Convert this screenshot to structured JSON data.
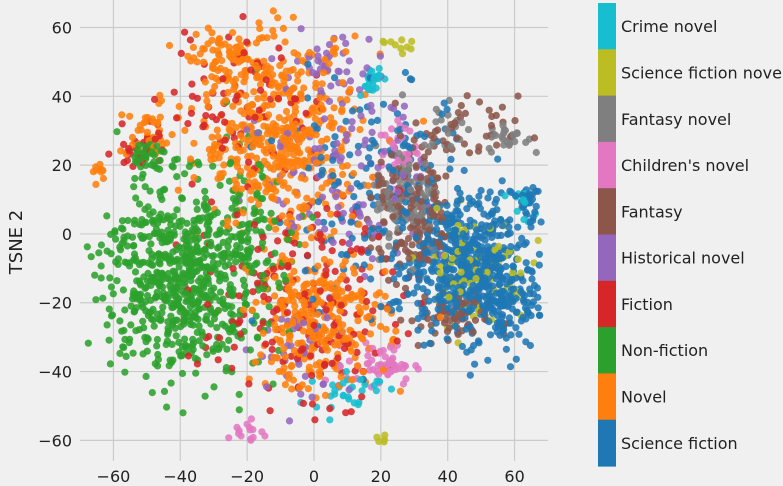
{
  "chart_data": {
    "type": "scatter",
    "title": "",
    "xlabel": "",
    "ylabel": "TSNE 2",
    "xlim": [
      -70,
      70
    ],
    "ylim": [
      -66,
      68
    ],
    "xticks": [
      -60,
      -40,
      -20,
      0,
      20,
      40,
      60
    ],
    "yticks": [
      -60,
      -40,
      -20,
      0,
      20,
      40,
      60
    ],
    "xtick_labels": [
      "−60",
      "−40",
      "−20",
      "0",
      "20",
      "40",
      "60"
    ],
    "ytick_labels": [
      "−60",
      "−40",
      "−20",
      "0",
      "20",
      "40",
      "60"
    ],
    "grid": true,
    "legend": "colorbar-right",
    "colorbar_labels": [
      {
        "label": "Crime novel",
        "color": "#17becf"
      },
      {
        "label": "Science fiction novel",
        "color": "#bcbd22"
      },
      {
        "label": "Fantasy novel",
        "color": "#7f7f7f"
      },
      {
        "label": "Children's novel",
        "color": "#e377c2"
      },
      {
        "label": "Fantasy",
        "color": "#8c564b"
      },
      {
        "label": "Historical novel",
        "color": "#9467bd"
      },
      {
        "label": "Fiction",
        "color": "#d62728"
      },
      {
        "label": "Non-fiction",
        "color": "#2ca02c"
      },
      {
        "label": "Novel",
        "color": "#ff7f0e"
      },
      {
        "label": "Science fiction",
        "color": "#1f77b4"
      }
    ],
    "series": [
      {
        "name": "Science fiction",
        "color": "#1f77b4",
        "clusters": [
          {
            "center": [
              45,
              -8
            ],
            "spread": [
              10,
              10
            ],
            "n": 520
          },
          {
            "center": [
              55,
              -20
            ],
            "spread": [
              7,
              7
            ],
            "n": 160
          },
          {
            "center": [
              64,
              10
            ],
            "spread": [
              1.5,
              2
            ],
            "n": 25
          },
          {
            "center": [
              28,
              20
            ],
            "spread": [
              8,
              12
            ],
            "n": 60
          },
          {
            "center": [
              10,
              10
            ],
            "spread": [
              12,
              20
            ],
            "n": 80
          }
        ]
      },
      {
        "name": "Novel",
        "color": "#ff7f0e",
        "clusters": [
          {
            "center": [
              -10,
              28
            ],
            "spread": [
              12,
              14
            ],
            "n": 480
          },
          {
            "center": [
              2,
              -25
            ],
            "spread": [
              10,
              10
            ],
            "n": 300
          },
          {
            "center": [
              -25,
              50
            ],
            "spread": [
              6,
              4
            ],
            "n": 80
          },
          {
            "center": [
              -50,
              28
            ],
            "spread": [
              4,
              4
            ],
            "n": 40
          },
          {
            "center": [
              -64,
              18
            ],
            "spread": [
              1.5,
              1.5
            ],
            "n": 10
          }
        ]
      },
      {
        "name": "Non-fiction",
        "color": "#2ca02c",
        "clusters": [
          {
            "center": [
              -40,
              -12
            ],
            "spread": [
              12,
              14
            ],
            "n": 700
          },
          {
            "center": [
              -50,
              22
            ],
            "spread": [
              3,
              3
            ],
            "n": 40
          },
          {
            "center": [
              -20,
              0
            ],
            "spread": [
              6,
              15
            ],
            "n": 80
          }
        ]
      },
      {
        "name": "Fiction",
        "color": "#d62728",
        "clusters": [
          {
            "center": [
              -5,
              -20
            ],
            "spread": [
              15,
              15
            ],
            "n": 180
          },
          {
            "center": [
              -20,
              40
            ],
            "spread": [
              12,
              12
            ],
            "n": 80
          },
          {
            "center": [
              -52,
              26
            ],
            "spread": [
              4,
              4
            ],
            "n": 25
          }
        ]
      },
      {
        "name": "Historical novel",
        "color": "#9467bd",
        "clusters": [
          {
            "center": [
              10,
              20
            ],
            "spread": [
              12,
              15
            ],
            "n": 130
          },
          {
            "center": [
              5,
              50
            ],
            "spread": [
              6,
              5
            ],
            "n": 30
          },
          {
            "center": [
              -5,
              -35
            ],
            "spread": [
              8,
              8
            ],
            "n": 40
          }
        ]
      },
      {
        "name": "Fantasy",
        "color": "#8c564b",
        "clusters": [
          {
            "center": [
              30,
              5
            ],
            "spread": [
              6,
              10
            ],
            "n": 160
          },
          {
            "center": [
              40,
              -25
            ],
            "spread": [
              6,
              4
            ],
            "n": 60
          },
          {
            "center": [
              45,
              30
            ],
            "spread": [
              8,
              5
            ],
            "n": 40
          }
        ]
      },
      {
        "name": "Children's novel",
        "color": "#e377c2",
        "clusters": [
          {
            "center": [
              20,
              -38
            ],
            "spread": [
              5,
              3
            ],
            "n": 60
          },
          {
            "center": [
              25,
              25
            ],
            "spread": [
              3,
              5
            ],
            "n": 30
          },
          {
            "center": [
              -20,
              -58
            ],
            "spread": [
              3,
              2
            ],
            "n": 15
          }
        ]
      },
      {
        "name": "Fantasy novel",
        "color": "#7f7f7f",
        "clusters": [
          {
            "center": [
              28,
              10
            ],
            "spread": [
              5,
              8
            ],
            "n": 90
          },
          {
            "center": [
              58,
              28
            ],
            "spread": [
              3,
              2
            ],
            "n": 25
          },
          {
            "center": [
              40,
              32
            ],
            "spread": [
              4,
              4
            ],
            "n": 20
          }
        ]
      },
      {
        "name": "Science fiction novel",
        "color": "#bcbd22",
        "clusters": [
          {
            "center": [
              48,
              -10
            ],
            "spread": [
              8,
              8
            ],
            "n": 90
          },
          {
            "center": [
              25,
              55
            ],
            "spread": [
              3,
              2
            ],
            "n": 10
          },
          {
            "center": [
              20,
              -60
            ],
            "spread": [
              2,
              1
            ],
            "n": 5
          }
        ]
      },
      {
        "name": "Crime novel",
        "color": "#17becf",
        "clusters": [
          {
            "center": [
              17,
              45
            ],
            "spread": [
              2,
              2
            ],
            "n": 25
          },
          {
            "center": [
              10,
              -45
            ],
            "spread": [
              5,
              3
            ],
            "n": 30
          },
          {
            "center": [
              62,
              8
            ],
            "spread": [
              2,
              2
            ],
            "n": 10
          }
        ]
      }
    ]
  }
}
